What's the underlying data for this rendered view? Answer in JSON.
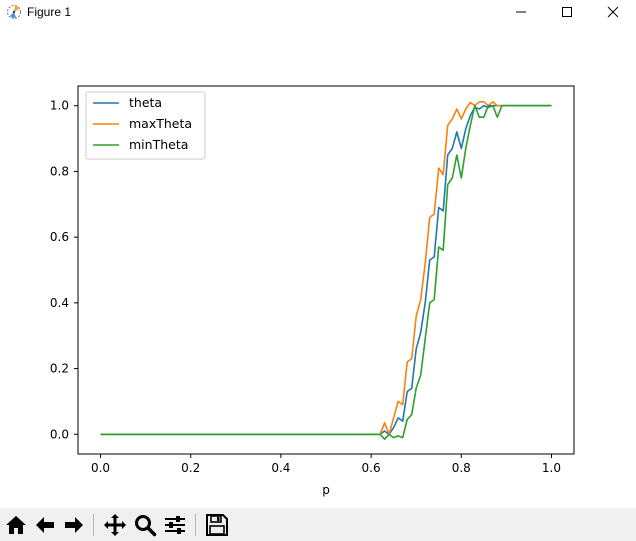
{
  "window": {
    "title": "Figure 1",
    "icon": "matplotlib-figure-icon",
    "controls": [
      "minimize-icon",
      "maximize-icon",
      "close-icon"
    ]
  },
  "toolbar": {
    "buttons": [
      {
        "name": "home-button",
        "icon": "home-icon"
      },
      {
        "name": "back-button",
        "icon": "arrow-left-icon"
      },
      {
        "name": "forward-button",
        "icon": "arrow-right-icon"
      },
      {
        "name": "pan-button",
        "icon": "move-icon"
      },
      {
        "name": "zoom-button",
        "icon": "magnifier-icon"
      },
      {
        "name": "configure-subplots-button",
        "icon": "sliders-icon"
      },
      {
        "name": "save-button",
        "icon": "floppy-disk-icon"
      }
    ]
  },
  "chart_data": {
    "type": "line",
    "title": "",
    "xlabel": "p",
    "ylabel": "",
    "xlim": [
      -0.05,
      1.05
    ],
    "ylim": [
      -0.06,
      1.06
    ],
    "xticks": [
      "0.0",
      "0.2",
      "0.4",
      "0.6",
      "0.8",
      "1.0"
    ],
    "yticks": [
      "0.0",
      "0.2",
      "0.4",
      "0.6",
      "0.8",
      "1.0"
    ],
    "grid": false,
    "legend_position": "upper-left",
    "x": [
      0.0,
      0.62,
      0.63,
      0.64,
      0.65,
      0.66,
      0.67,
      0.68,
      0.69,
      0.7,
      0.71,
      0.72,
      0.73,
      0.74,
      0.75,
      0.76,
      0.77,
      0.78,
      0.79,
      0.8,
      0.81,
      0.82,
      0.83,
      0.84,
      0.85,
      0.86,
      0.87,
      0.88,
      0.89,
      1.0
    ],
    "series": [
      {
        "name": "theta",
        "color": "#1f77b4",
        "values": [
          0.0,
          0.0,
          0.01,
          0.0,
          0.02,
          0.05,
          0.04,
          0.13,
          0.14,
          0.26,
          0.31,
          0.4,
          0.53,
          0.54,
          0.69,
          0.68,
          0.85,
          0.87,
          0.92,
          0.87,
          0.93,
          0.97,
          0.995,
          0.99,
          1.0,
          0.995,
          1.0,
          1.0,
          1.0,
          1.0
        ]
      },
      {
        "name": "maxTheta",
        "color": "#ff7f0e",
        "values": [
          0.0,
          0.0,
          0.035,
          0.0,
          0.05,
          0.1,
          0.09,
          0.22,
          0.23,
          0.36,
          0.41,
          0.52,
          0.66,
          0.67,
          0.81,
          0.79,
          0.94,
          0.96,
          0.99,
          0.96,
          0.99,
          1.01,
          1.0,
          1.012,
          1.012,
          1.0,
          1.012,
          1.0,
          1.0,
          1.0
        ]
      },
      {
        "name": "minTheta",
        "color": "#2ca02c",
        "values": [
          0.0,
          0.0,
          -0.015,
          0.0,
          -0.01,
          -0.005,
          -0.01,
          0.045,
          0.06,
          0.14,
          0.18,
          0.29,
          0.4,
          0.41,
          0.57,
          0.56,
          0.76,
          0.78,
          0.85,
          0.78,
          0.87,
          0.94,
          1.0,
          0.965,
          0.965,
          1.0,
          1.0,
          0.965,
          1.0,
          1.0
        ]
      }
    ]
  }
}
